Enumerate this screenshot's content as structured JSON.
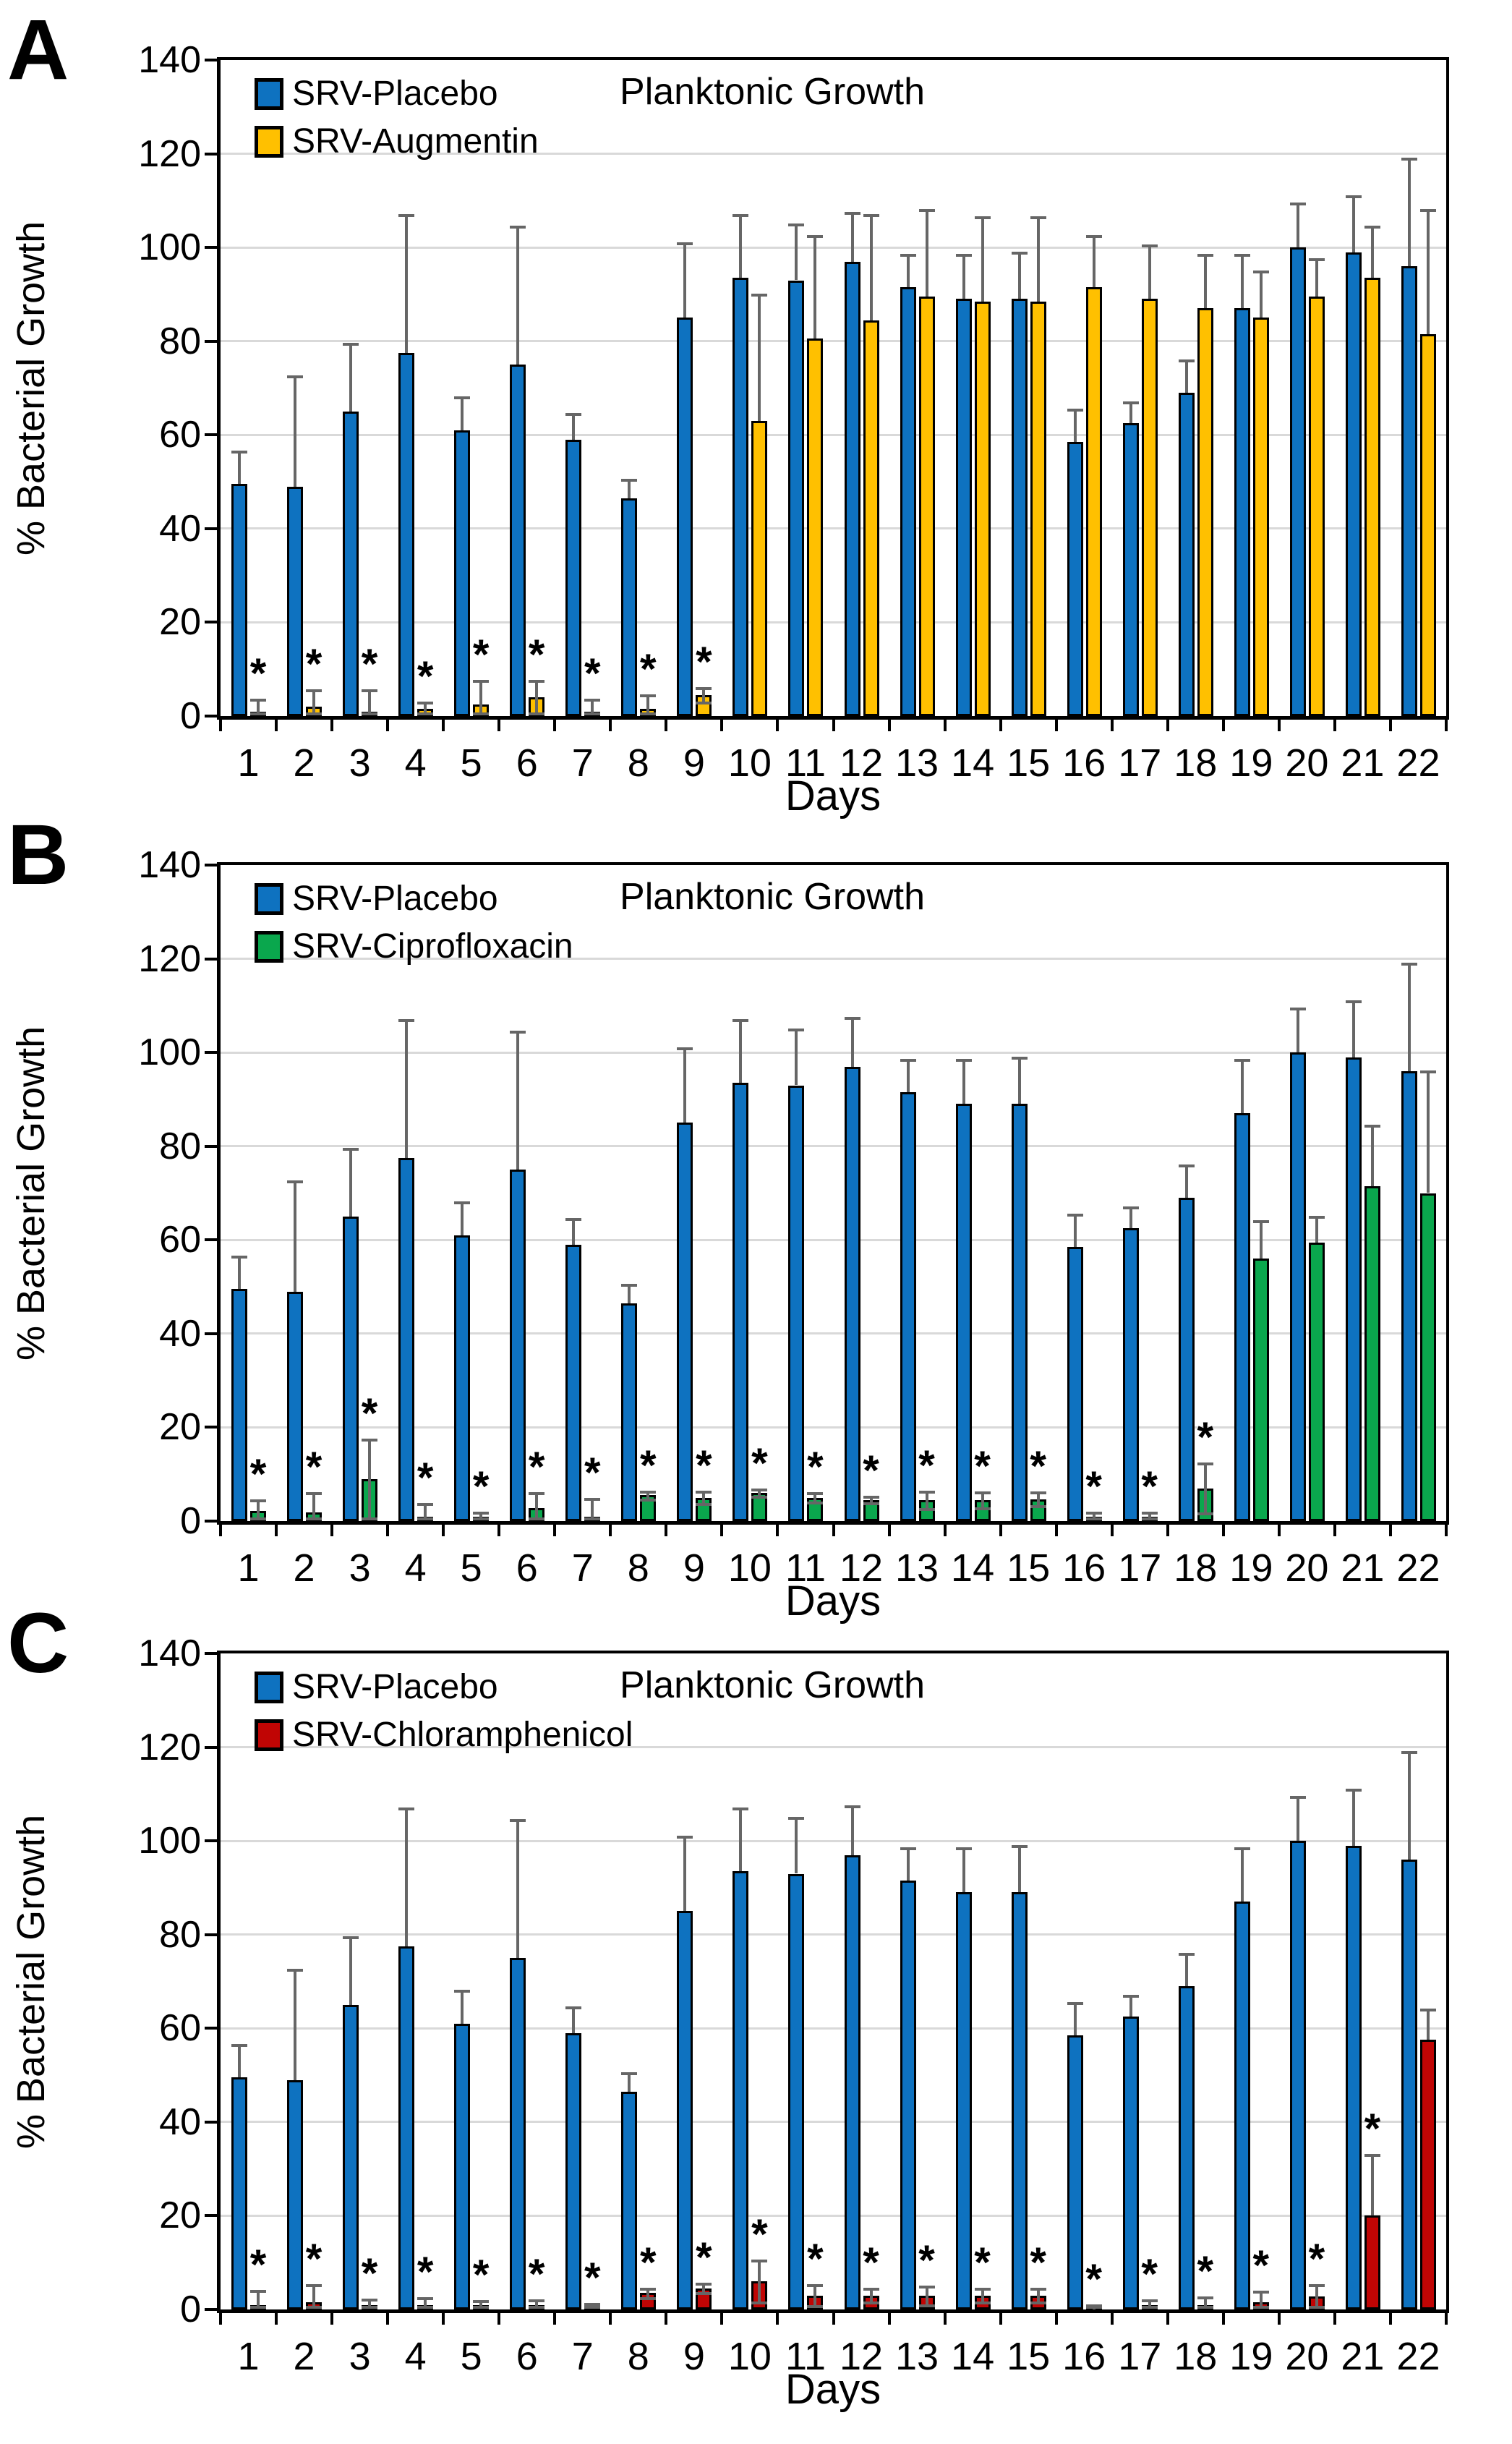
{
  "figure_caption_letters": [
    "A",
    "B",
    "C"
  ],
  "significance_marker": "*",
  "error_bar_color": "#666666",
  "grid_color": "#D9D9D9",
  "chart_data": [
    {
      "type": "bar",
      "panel": "A",
      "title": "Planktonic Growth",
      "xlabel": "Days",
      "ylabel": "% Bacterial Growth",
      "ylim": [
        0,
        140
      ],
      "yticks": [
        0,
        20,
        40,
        60,
        80,
        100,
        120,
        140
      ],
      "grid": true,
      "legend_position": "top-left",
      "categories": [
        1,
        2,
        3,
        4,
        5,
        6,
        7,
        8,
        9,
        10,
        11,
        12,
        13,
        14,
        15,
        16,
        17,
        18,
        19,
        20,
        21,
        22
      ],
      "series": [
        {
          "name": "SRV-Placebo",
          "color": "#0E72C0",
          "values": [
            49.5,
            49,
            65,
            77.5,
            61,
            75,
            59,
            46.5,
            85,
            93.5,
            93,
            97,
            91.5,
            89,
            89,
            58.5,
            62.5,
            69,
            87,
            100,
            99,
            96
          ],
          "err_top": [
            56.5,
            72.5,
            79.5,
            107,
            68,
            104.5,
            64.5,
            50.5,
            101,
            107,
            105,
            107.5,
            98.5,
            98.5,
            99,
            65.5,
            67,
            76,
            98.5,
            109.5,
            111,
            119
          ]
        },
        {
          "name": "SRV-Augmentin",
          "color": "#FFC000",
          "values": [
            0.5,
            2,
            0.5,
            1.5,
            2.5,
            4,
            1,
            1.5,
            4.5,
            63,
            80.5,
            84.5,
            89.5,
            88.5,
            88.5,
            91.5,
            89,
            87,
            85,
            89.5,
            93.5,
            81.5
          ],
          "err_top": [
            3.5,
            5.5,
            5.5,
            3,
            7.5,
            7.5,
            3.5,
            4.5,
            6,
            90,
            102.5,
            107,
            108,
            106.5,
            106.5,
            102.5,
            100.5,
            98.5,
            95,
            97.5,
            104.5,
            108
          ],
          "significant_days": [
            1,
            2,
            3,
            4,
            5,
            6,
            7,
            8,
            9
          ]
        }
      ]
    },
    {
      "type": "bar",
      "panel": "B",
      "title": "Planktonic Growth",
      "xlabel": "Days",
      "ylabel": "% Bacterial Growth",
      "ylim": [
        0,
        140
      ],
      "yticks": [
        0,
        20,
        40,
        60,
        80,
        100,
        120,
        140
      ],
      "grid": true,
      "legend_position": "top-left",
      "categories": [
        1,
        2,
        3,
        4,
        5,
        6,
        7,
        8,
        9,
        10,
        11,
        12,
        13,
        14,
        15,
        16,
        17,
        18,
        19,
        20,
        21,
        22
      ],
      "series": [
        {
          "name": "SRV-Placebo",
          "color": "#0E72C0",
          "values": [
            49.5,
            49,
            65,
            77.5,
            61,
            75,
            59,
            46.5,
            85,
            93.5,
            93,
            97,
            91.5,
            89,
            89,
            58.5,
            62.5,
            69,
            87,
            100,
            99,
            96
          ],
          "err_top": [
            56.5,
            72.5,
            79.5,
            107,
            68,
            104.5,
            64.5,
            50.5,
            101,
            107,
            105,
            107.5,
            98.5,
            98.5,
            99,
            65.5,
            67,
            76,
            98.5,
            109.5,
            111,
            119
          ]
        },
        {
          "name": "SRV-Ciprofloxacin",
          "color": "#0AA74D",
          "values": [
            2.2,
            1.8,
            9,
            0.8,
            0.5,
            2.8,
            1,
            5.5,
            5,
            6,
            5,
            4.5,
            4.5,
            4.5,
            4.7,
            0.5,
            0.5,
            7,
            56,
            59.5,
            71.5,
            70
          ],
          "err_top": [
            4.5,
            6,
            17.5,
            3.7,
            1.8,
            6,
            4.8,
            6.3,
            6.3,
            6.8,
            6,
            5.2,
            6.4,
            6.2,
            6.2,
            1.8,
            1.8,
            12.3,
            64,
            65,
            84.5,
            96
          ],
          "significant_days": [
            1,
            2,
            3,
            4,
            5,
            6,
            7,
            8,
            9,
            10,
            11,
            12,
            13,
            14,
            15,
            16,
            17,
            18
          ]
        }
      ]
    },
    {
      "type": "bar",
      "panel": "C",
      "title": "Planktonic Growth",
      "xlabel": "Days",
      "ylabel": "% Bacterial Growth",
      "ylim": [
        0,
        140
      ],
      "yticks": [
        0,
        20,
        40,
        60,
        80,
        100,
        120,
        140
      ],
      "grid": true,
      "legend_position": "top-left",
      "categories": [
        1,
        2,
        3,
        4,
        5,
        6,
        7,
        8,
        9,
        10,
        11,
        12,
        13,
        14,
        15,
        16,
        17,
        18,
        19,
        20,
        21,
        22
      ],
      "series": [
        {
          "name": "SRV-Placebo",
          "color": "#0E72C0",
          "values": [
            49.5,
            49,
            65,
            77.5,
            61,
            75,
            59,
            46.5,
            85,
            93.5,
            93,
            97,
            91.5,
            89,
            89,
            58.5,
            62.5,
            69,
            87,
            100,
            99,
            96
          ],
          "err_top": [
            56.5,
            72.5,
            79.5,
            107,
            68,
            104.5,
            64.5,
            50.5,
            101,
            107,
            105,
            107.5,
            98.5,
            98.5,
            99,
            65.5,
            67,
            76,
            98.5,
            109.5,
            111,
            119
          ]
        },
        {
          "name": "SRV-Chloramphenicol",
          "color": "#C00504",
          "values": [
            0.5,
            1.5,
            1,
            0.5,
            0.5,
            0.5,
            0.4,
            3.5,
            4.5,
            6,
            3,
            3,
            3,
            3,
            3,
            0.3,
            0.8,
            0.8,
            1.5,
            2.8,
            20,
            57.5
          ],
          "err_top": [
            4,
            5.3,
            2.1,
            2.4,
            1.8,
            2,
            1.2,
            4.5,
            5.5,
            10.5,
            5.2,
            4.5,
            5,
            4.5,
            4.5,
            1,
            2,
            2.6,
            3.9,
            5.2,
            33,
            64
          ],
          "significant_days": [
            1,
            2,
            3,
            4,
            5,
            6,
            7,
            8,
            9,
            10,
            11,
            12,
            13,
            14,
            15,
            16,
            17,
            18,
            19,
            20,
            21
          ]
        }
      ]
    }
  ]
}
